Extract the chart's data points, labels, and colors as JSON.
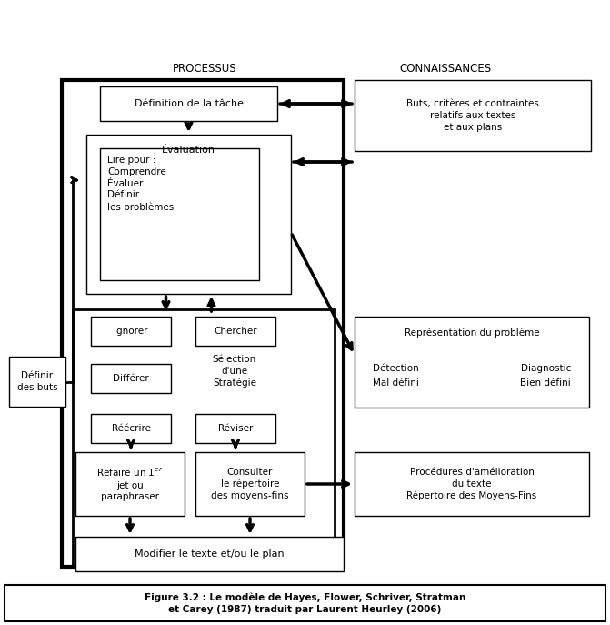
{
  "title": "Figure 3.2 : Le modèle de Hayes, Flower, Schriver, Stratman\net Carey (1987) traduit par Laurent Heurley (2006)",
  "header_processus": "PROCESSUS",
  "header_connaissances": "CONNAISSANCES",
  "bg_color": "#ffffff"
}
